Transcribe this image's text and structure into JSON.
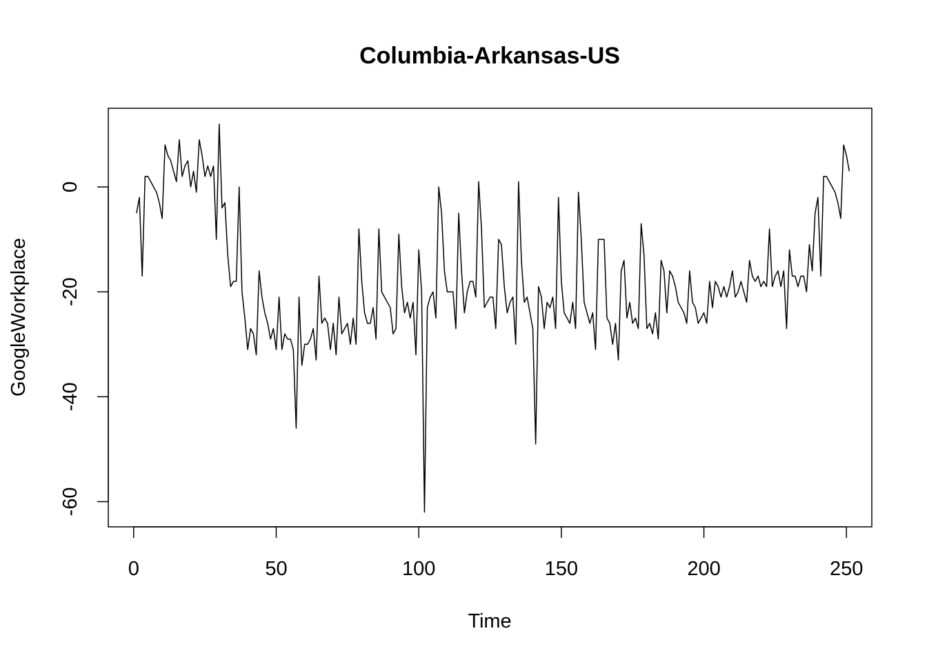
{
  "chart_data": {
    "type": "line",
    "title": "Columbia-Arkansas-US",
    "xlabel": "Time",
    "ylabel": "GoogleWorkplace",
    "xlim": [
      -8.9,
      258.9
    ],
    "ylim": [
      -64.8,
      15.0
    ],
    "x_ticks": [
      0,
      50,
      100,
      150,
      200,
      250
    ],
    "x_tick_labels": [
      "0",
      "50",
      "100",
      "150",
      "200",
      "250"
    ],
    "y_ticks": [
      0,
      -20,
      -40,
      -60
    ],
    "y_tick_labels": [
      "0",
      "-20",
      "-40",
      "-60"
    ],
    "grid": false,
    "legend": "none",
    "line_color": "#000000",
    "series": [
      {
        "x_start": 1,
        "values": [
          -5,
          -2,
          -17,
          2,
          2,
          1,
          0,
          -1,
          -3,
          -6,
          8,
          6,
          5,
          3,
          1,
          9,
          2,
          4,
          5,
          0,
          3,
          -1,
          9,
          6,
          2,
          4,
          2,
          4,
          -10,
          12,
          -4,
          -3,
          -13,
          -19,
          -18,
          -18,
          0,
          -20,
          -25,
          -31,
          -27,
          -28,
          -32,
          -16,
          -21,
          -24,
          -26,
          -29,
          -27,
          -31,
          -21,
          -31,
          -28,
          -29,
          -29,
          -31,
          -46,
          -21,
          -34,
          -30,
          -30,
          -29,
          -27,
          -33,
          -17,
          -26,
          -25,
          -26,
          -31,
          -26,
          -32,
          -21,
          -28,
          -27,
          -26,
          -30,
          -25,
          -30,
          -8,
          -18,
          -24,
          -26,
          -26,
          -23,
          -29,
          -8,
          -20,
          -21,
          -22,
          -23,
          -28,
          -27,
          -9,
          -19,
          -24,
          -22,
          -25,
          -22,
          -32,
          -12,
          -20,
          -62,
          -23,
          -21,
          -20,
          -25,
          0,
          -5,
          -16,
          -20,
          -20,
          -20,
          -27,
          -5,
          -16,
          -24,
          -20,
          -18,
          -18,
          -21,
          1,
          -8,
          -23,
          -22,
          -21,
          -21,
          -27,
          -10,
          -11,
          -19,
          -24,
          -22,
          -21,
          -30,
          1,
          -14,
          -22,
          -21,
          -24,
          -27,
          -49,
          -19,
          -21,
          -27,
          -22,
          -23,
          -21,
          -27,
          -2,
          -18,
          -24,
          -25,
          -26,
          -22,
          -27,
          -1,
          -10,
          -22,
          -24,
          -26,
          -24,
          -31,
          -10,
          -10,
          -10,
          -25,
          -26,
          -30,
          -26,
          -33,
          -16,
          -14,
          -25,
          -22,
          -26,
          -25,
          -27,
          -7,
          -13,
          -27,
          -26,
          -28,
          -24,
          -29,
          -14,
          -16,
          -24,
          -16,
          -17,
          -19,
          -22,
          -23,
          -24,
          -26,
          -16,
          -22,
          -23,
          -26,
          -25,
          -24,
          -26,
          -18,
          -23,
          -18,
          -19,
          -21,
          -19,
          -21,
          -19,
          -16,
          -21,
          -20,
          -18,
          -20,
          -22,
          -14,
          -17,
          -18,
          -17,
          -19,
          -18,
          -19,
          -8,
          -19,
          -17,
          -16,
          -19,
          -16,
          -27,
          -12,
          -17,
          -17,
          -19,
          -17,
          -17,
          -20,
          -11,
          -16,
          -5,
          -2,
          -17,
          2,
          2,
          1,
          0,
          -1,
          -3,
          -6,
          8,
          6,
          3
        ]
      }
    ]
  }
}
